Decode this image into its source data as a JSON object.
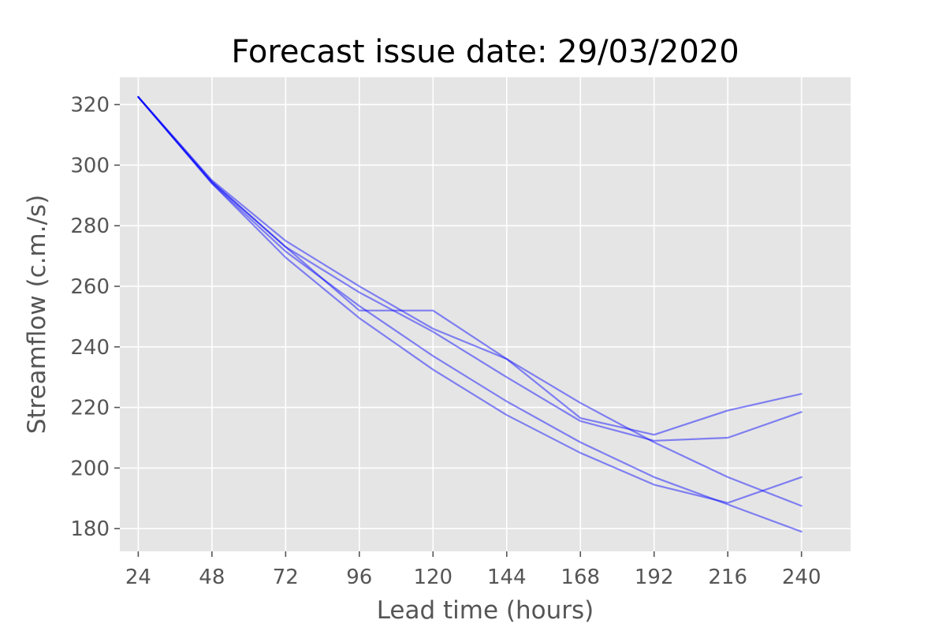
{
  "chart_data": {
    "type": "line",
    "title": "Forecast issue date: 29/03/2020",
    "xlabel": "Lead time (hours)",
    "ylabel": "Streamflow (c.m./s)",
    "x": [
      24,
      48,
      72,
      96,
      120,
      144,
      168,
      192,
      216,
      240
    ],
    "xlim": [
      18,
      256
    ],
    "ylim": [
      172.5,
      329
    ],
    "xticks": [
      24,
      48,
      72,
      96,
      120,
      144,
      168,
      192,
      216,
      240
    ],
    "yticks": [
      180,
      200,
      220,
      240,
      260,
      280,
      300,
      320
    ],
    "grid": true,
    "legend": "none",
    "colors": {
      "background": "#e5e5e5",
      "grid": "#ffffff",
      "line": "#0000ff",
      "text": "#555555"
    },
    "series": [
      {
        "values": [
          322.5,
          295.0,
          275.0,
          260.0,
          246.0,
          236.0,
          221.5,
          208.5,
          197.0,
          187.5
        ]
      },
      {
        "values": [
          322.5,
          294.5,
          273.0,
          252.0,
          252.0,
          236.0,
          216.5,
          211.0,
          219.0,
          224.5
        ]
      },
      {
        "values": [
          322.5,
          294.5,
          273.0,
          258.0,
          245.0,
          230.0,
          215.5,
          209.0,
          210.0,
          218.5
        ]
      },
      {
        "values": [
          322.5,
          294.0,
          271.5,
          253.5,
          237.0,
          222.0,
          208.5,
          197.0,
          188.0,
          179.0
        ]
      },
      {
        "values": [
          322.5,
          294.0,
          269.5,
          249.5,
          232.5,
          217.5,
          205.0,
          194.5,
          188.5,
          197.0
        ]
      }
    ]
  }
}
